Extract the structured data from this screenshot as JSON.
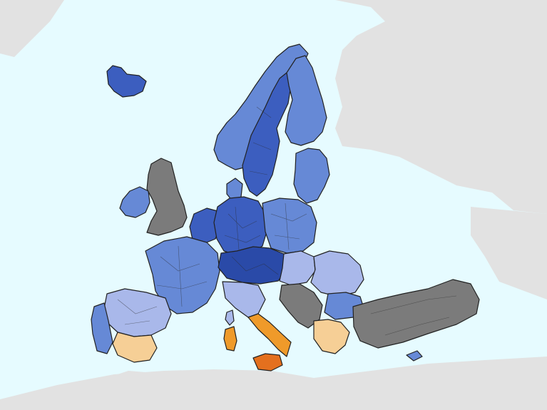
{
  "map": {
    "colors": {
      "sea": "#e6fbff",
      "non_eu_land": "#e2e2e2",
      "no_data": "#7b7b7b",
      "class_1_darkest_blue": "#2a4aa8",
      "class_2_dark_blue": "#3c5ebf",
      "class_3_medium_blue": "#6689d6",
      "class_4_light_blue": "#a9b8ea",
      "class_5_light_orange": "#f6cf96",
      "class_6_orange": "#ef9a2a",
      "class_7_dark_orange": "#e4701e"
    },
    "regions": [
      {
        "name": "iceland",
        "class": "class_2_dark_blue"
      },
      {
        "name": "norway",
        "class": "class_3_medium_blue"
      },
      {
        "name": "sweden",
        "class": "class_2_dark_blue"
      },
      {
        "name": "finland",
        "class": "class_3_medium_blue"
      },
      {
        "name": "baltics",
        "class": "class_3_medium_blue"
      },
      {
        "name": "ireland",
        "class": "class_3_medium_blue"
      },
      {
        "name": "united-kingdom",
        "class": "no_data"
      },
      {
        "name": "denmark",
        "class": "class_3_medium_blue"
      },
      {
        "name": "benelux",
        "class": "class_2_dark_blue"
      },
      {
        "name": "germany",
        "class": "class_2_dark_blue"
      },
      {
        "name": "poland",
        "class": "class_3_medium_blue"
      },
      {
        "name": "france",
        "class": "class_3_medium_blue"
      },
      {
        "name": "switzerland-austria-czechia",
        "class": "class_1_darkest_blue"
      },
      {
        "name": "hungary-slovakia",
        "class": "class_4_light_blue"
      },
      {
        "name": "romania",
        "class": "class_4_light_blue"
      },
      {
        "name": "bulgaria",
        "class": "class_3_medium_blue"
      },
      {
        "name": "spain",
        "class": "class_4_light_blue"
      },
      {
        "name": "portugal",
        "class": "class_3_medium_blue"
      },
      {
        "name": "southern-spain",
        "class": "class_5_light_orange"
      },
      {
        "name": "northern-italy",
        "class": "class_4_light_blue"
      },
      {
        "name": "southern-italy",
        "class": "class_6_orange"
      },
      {
        "name": "sicily",
        "class": "class_7_dark_orange"
      },
      {
        "name": "sardinia",
        "class": "class_6_orange"
      },
      {
        "name": "corsica",
        "class": "class_4_light_blue"
      },
      {
        "name": "western-balkans",
        "class": "no_data"
      },
      {
        "name": "greece",
        "class": "class_5_light_orange"
      },
      {
        "name": "turkey",
        "class": "no_data"
      },
      {
        "name": "cyprus",
        "class": "class_3_medium_blue"
      }
    ]
  }
}
